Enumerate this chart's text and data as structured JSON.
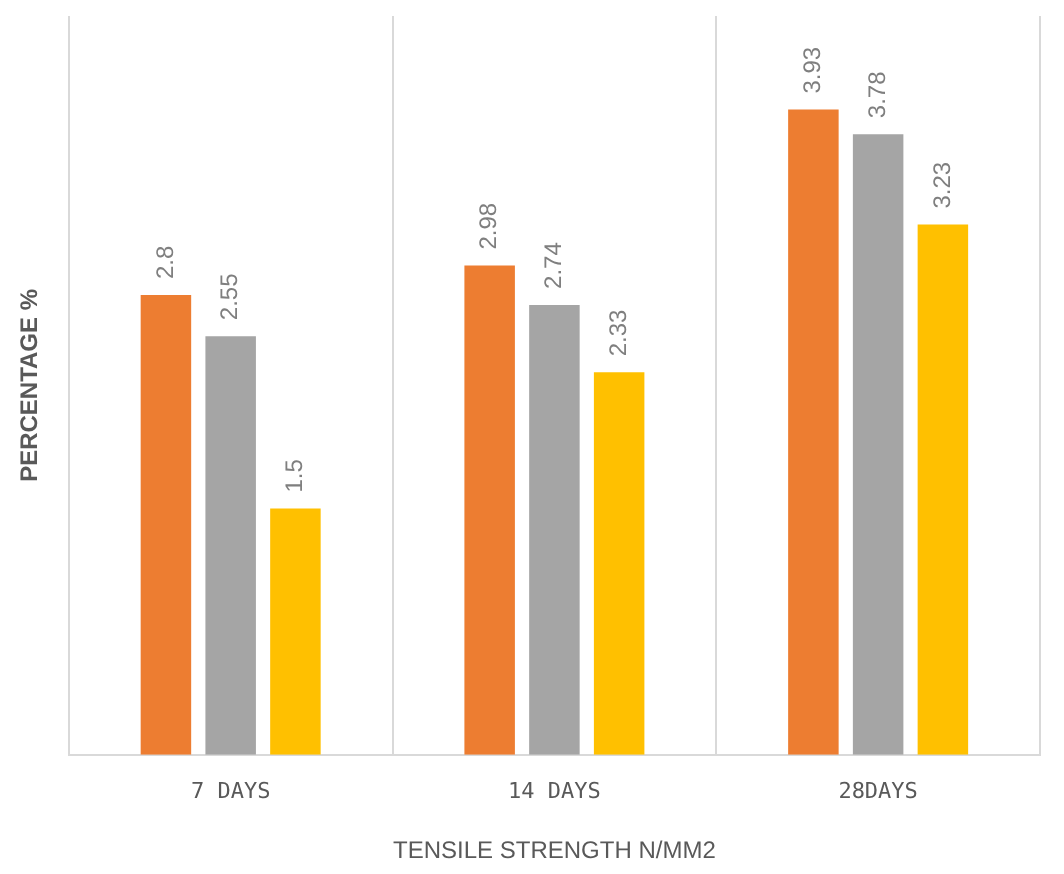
{
  "chart_data": {
    "type": "bar",
    "xlabel": "TENSILE STRENGTH N/MM2",
    "ylabel": "PERCENTAGE %",
    "categories": [
      "7 DAYS",
      "14 DAYS",
      "28DAYS"
    ],
    "series": [
      {
        "color": "#ed7d31",
        "values": [
          2.8,
          2.98,
          3.93
        ]
      },
      {
        "color": "#a5a5a5",
        "values": [
          2.55,
          2.74,
          3.78
        ]
      },
      {
        "color": "#ffc000",
        "values": [
          1.5,
          2.33,
          3.23
        ]
      }
    ],
    "data_labels": true,
    "grid": "x",
    "legend": false
  }
}
